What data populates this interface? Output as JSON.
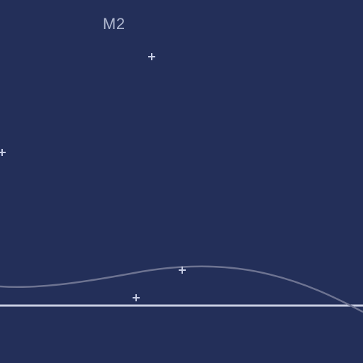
{
  "view": {
    "marker_label": "M2",
    "background_color": "#232F59",
    "line_color": "#C8CEE2",
    "curve_color": "#6D7391",
    "marker_color": "#C7CDE4",
    "marker_glyph": "plus-cross-icon"
  }
}
